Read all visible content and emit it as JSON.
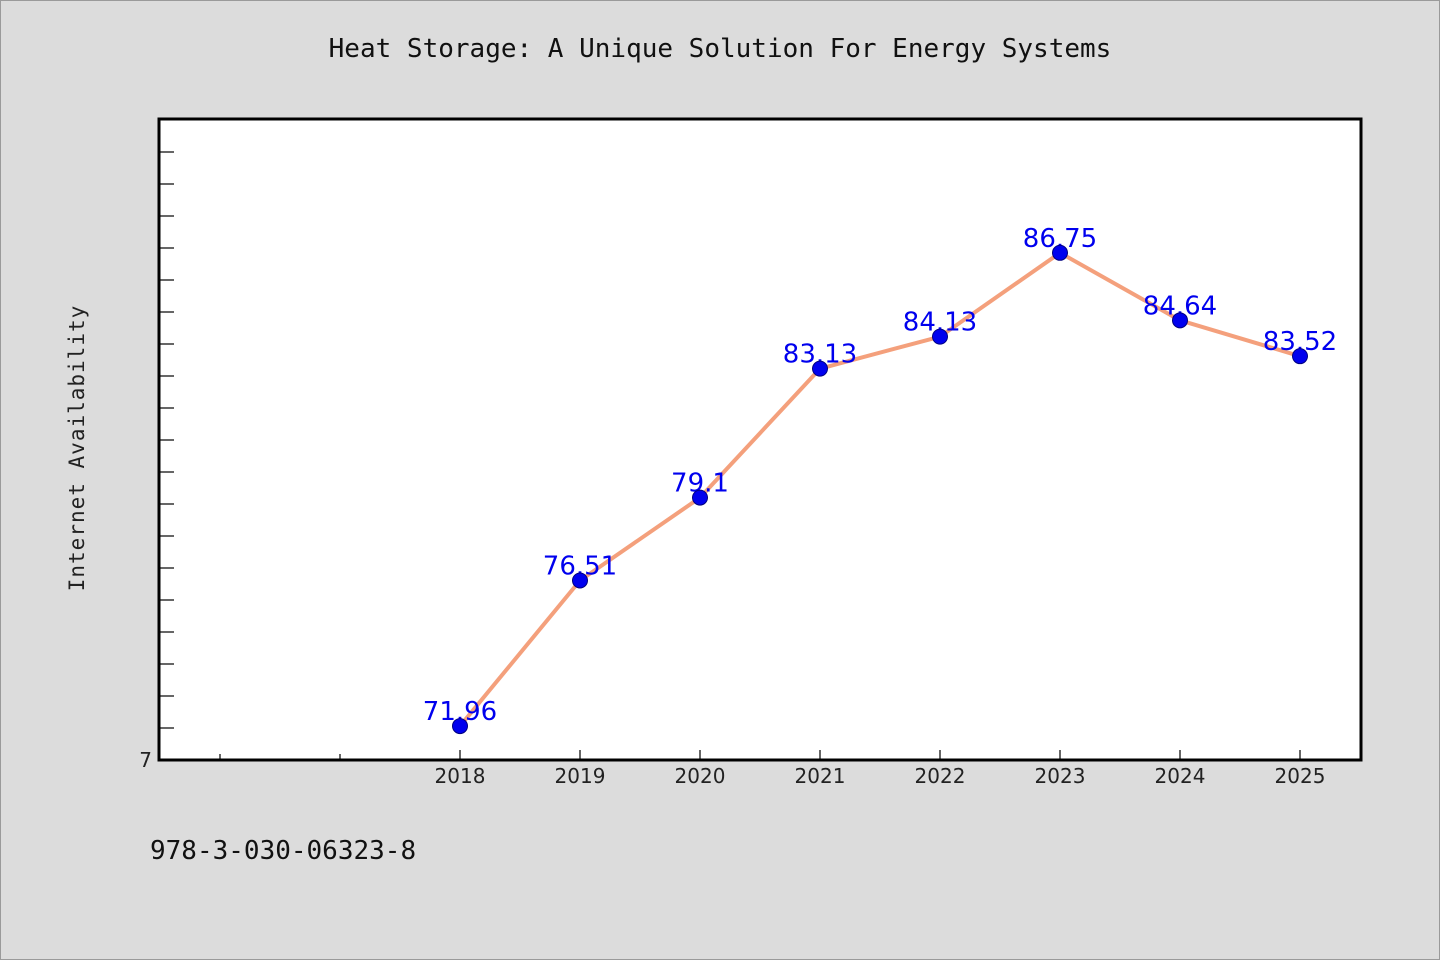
{
  "chart_data": {
    "type": "line",
    "title": "Heat Storage: A Unique Solution For Energy Systems",
    "ylabel": "Internet Availability",
    "xlabel": "",
    "x": [
      "2018",
      "2019",
      "2020",
      "2021",
      "2022",
      "2023",
      "2024",
      "2025"
    ],
    "series": [
      {
        "values": [
          71.96,
          76.51,
          79.1,
          83.13,
          84.13,
          86.75,
          84.64,
          83.52
        ]
      }
    ],
    "data_labels": [
      "71.96",
      "76.51",
      "79.1",
      "83.13",
      "84.13",
      "86.75",
      "84.64",
      "83.52"
    ],
    "y_tick_labels": [
      "7"
    ],
    "ylim": [
      70.9,
      90.9
    ],
    "grid": false,
    "line_color": "#f4a07c",
    "marker_color": "#0000ee",
    "label_color": "#0000ee"
  },
  "footnote": "978-3-030-06323-8"
}
